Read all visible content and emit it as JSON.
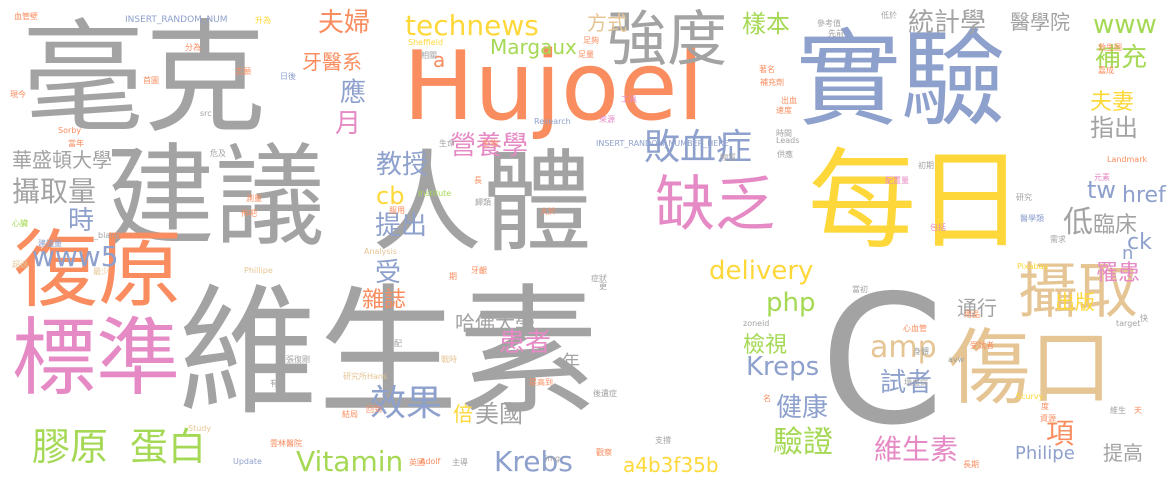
{
  "palette": {
    "gray": "#a3a3a3",
    "orange": "#f98d5f",
    "blue": "#8ea0cc",
    "pink": "#e58ac4",
    "yellow": "#fed83a",
    "green": "#a5d955",
    "tan": "#e6c595"
  },
  "words": [
    {
      "text": "毫克",
      "color": "gray"
    },
    {
      "text": "建議",
      "color": "gray"
    },
    {
      "text": "Hujoel",
      "color": "orange"
    },
    {
      "text": "實驗",
      "color": "blue"
    },
    {
      "text": "人體",
      "color": "gray"
    },
    {
      "text": "每日",
      "color": "yellow"
    },
    {
      "text": "維生素",
      "color": "gray"
    },
    {
      "text": "C",
      "color": "gray"
    },
    {
      "text": "復原",
      "color": "orange"
    },
    {
      "text": "標準",
      "color": "pink"
    },
    {
      "text": "傷口",
      "color": "tan"
    },
    {
      "text": "攝取",
      "color": "tan"
    },
    {
      "text": "強度",
      "color": "gray"
    },
    {
      "text": "缺乏",
      "color": "pink"
    },
    {
      "text": "膠原",
      "color": "green"
    },
    {
      "text": "蛋白",
      "color": "green"
    },
    {
      "text": "technews",
      "color": "yellow"
    },
    {
      "text": "樣本",
      "color": "green"
    },
    {
      "text": "統計學",
      "color": "gray"
    },
    {
      "text": "醫學院",
      "color": "gray"
    },
    {
      "text": "www",
      "color": "green"
    },
    {
      "text": "補充",
      "color": "green"
    },
    {
      "text": "夫婦",
      "color": "orange"
    },
    {
      "text": "牙醫系",
      "color": "orange"
    },
    {
      "text": "Margaux",
      "color": "green"
    },
    {
      "text": "敗血症",
      "color": "blue"
    },
    {
      "text": "營養學",
      "color": "pink"
    },
    {
      "text": "教授",
      "color": "blue"
    },
    {
      "text": "提出",
      "color": "blue"
    },
    {
      "text": "delivery",
      "color": "yellow"
    },
    {
      "text": "php",
      "color": "green"
    },
    {
      "text": "Kreps",
      "color": "blue"
    },
    {
      "text": "amp",
      "color": "tan"
    },
    {
      "text": "試者",
      "color": "blue"
    },
    {
      "text": "效果",
      "color": "blue"
    },
    {
      "text": "美國",
      "color": "gray"
    },
    {
      "text": "Vitamin",
      "color": "green"
    },
    {
      "text": "Krebs",
      "color": "blue"
    },
    {
      "text": "a4b3f35b",
      "color": "yellow"
    },
    {
      "text": "驗證",
      "color": "green"
    },
    {
      "text": "維生素",
      "color": "pink"
    },
    {
      "text": "Philipe",
      "color": "blue"
    },
    {
      "text": "提高",
      "color": "gray"
    },
    {
      "text": "華盛頓大學",
      "color": "gray"
    },
    {
      "text": "攝取量",
      "color": "gray"
    },
    {
      "text": "www5",
      "color": "blue"
    },
    {
      "text": "哈佛大學",
      "color": "gray"
    },
    {
      "text": "患者",
      "color": "pink"
    },
    {
      "text": "檢視",
      "color": "green"
    },
    {
      "text": "健康",
      "color": "blue"
    },
    {
      "text": "出版",
      "color": "yellow"
    },
    {
      "text": "罹患",
      "color": "pink"
    },
    {
      "text": "臨床",
      "color": "gray"
    },
    {
      "text": "指出",
      "color": "gray"
    },
    {
      "text": "夫妻",
      "color": "yellow"
    },
    {
      "text": "href",
      "color": "blue"
    },
    {
      "text": "ck",
      "color": "blue"
    },
    {
      "text": "tw",
      "color": "blue"
    },
    {
      "text": "cb",
      "color": "yellow"
    },
    {
      "text": "雜誌",
      "color": "orange"
    },
    {
      "text": "通行",
      "color": "gray"
    },
    {
      "text": "方式",
      "color": "tan"
    },
    {
      "text": "月",
      "color": "pink"
    },
    {
      "text": "應",
      "color": "blue"
    },
    {
      "text": "低",
      "color": "gray"
    },
    {
      "text": "時",
      "color": "blue"
    },
    {
      "text": "受",
      "color": "blue"
    },
    {
      "text": "倍",
      "color": "yellow"
    },
    {
      "text": "年",
      "color": "gray"
    },
    {
      "text": "項",
      "color": "orange"
    },
    {
      "text": "n",
      "color": "blue"
    },
    {
      "text": "a",
      "color": "orange"
    },
    {
      "text": "INSERT_RANDOM_NUM",
      "color": "blue"
    },
    {
      "text": "INSERT_RANDOM_NUMBER_HERE'",
      "color": "blue"
    },
    {
      "text": "_blank'",
      "color": "gray"
    },
    {
      "text": "Research",
      "color": "blue"
    },
    {
      "text": "Sheffield",
      "color": "yellow"
    },
    {
      "text": "Pixabay",
      "color": "yellow"
    },
    {
      "text": "Landmark",
      "color": "orange"
    },
    {
      "text": "Institute",
      "color": "green"
    },
    {
      "text": "Analysis",
      "color": "tan"
    },
    {
      "text": "Leads",
      "color": "gray"
    },
    {
      "text": "Scurvy",
      "color": "yellow"
    },
    {
      "text": "zoneid",
      "color": "gray"
    },
    {
      "text": "target",
      "color": "gray"
    },
    {
      "text": "Sorby",
      "color": "orange"
    },
    {
      "text": "Adolf",
      "color": "orange"
    },
    {
      "text": "Update",
      "color": "blue"
    },
    {
      "text": "Study",
      "color": "tan"
    },
    {
      "text": "Hans",
      "color": "tan"
    },
    {
      "text": "Phillipe",
      "color": "tan"
    },
    {
      "text": "avw",
      "color": "gray"
    },
    {
      "text": "img",
      "color": "gray"
    },
    {
      "text": "src",
      "color": "gray"
    },
    {
      "text": "血管壁",
      "color": "orange"
    },
    {
      "text": "升為",
      "color": "yellow"
    },
    {
      "text": "分為",
      "color": "orange"
    },
    {
      "text": "志願",
      "color": "orange"
    },
    {
      "text": "首圖",
      "color": "orange"
    },
    {
      "text": "日後",
      "color": "blue"
    },
    {
      "text": "現今",
      "color": "orange"
    },
    {
      "text": "當年",
      "color": "orange"
    },
    {
      "text": "危及",
      "color": "gray"
    },
    {
      "text": "心臟",
      "color": "green"
    },
    {
      "text": "建議量",
      "color": "blue"
    },
    {
      "text": "超過",
      "color": "tan"
    },
    {
      "text": "最少",
      "color": "tan"
    },
    {
      "text": "參考值",
      "color": "gray"
    },
    {
      "text": "先前",
      "color": "gray"
    },
    {
      "text": "低於",
      "color": "gray"
    },
    {
      "text": "救生圈",
      "color": "orange"
    },
    {
      "text": "嘉成",
      "color": "orange"
    },
    {
      "text": "著名",
      "color": "orange"
    },
    {
      "text": "補充劑",
      "color": "orange"
    },
    {
      "text": "工具",
      "color": "pink"
    },
    {
      "text": "物質",
      "color": "gray"
    },
    {
      "text": "生命",
      "color": "gray"
    },
    {
      "text": "來源",
      "color": "pink"
    },
    {
      "text": "出血",
      "color": "orange"
    },
    {
      "text": "速度",
      "color": "orange"
    },
    {
      "text": "時間",
      "color": "gray"
    },
    {
      "text": "供應",
      "color": "gray"
    },
    {
      "text": "初期",
      "color": "gray"
    },
    {
      "text": "元素",
      "color": "pink"
    },
    {
      "text": "配置量",
      "color": "pink"
    },
    {
      "text": "研究",
      "color": "gray"
    },
    {
      "text": "包括",
      "color": "pink"
    },
    {
      "text": "醫學類",
      "color": "blue"
    },
    {
      "text": "需求",
      "color": "gray"
    },
    {
      "text": "牙齦",
      "color": "orange"
    },
    {
      "text": "症狀",
      "color": "gray"
    },
    {
      "text": "當初",
      "color": "gray"
    },
    {
      "text": "用品",
      "color": "orange"
    },
    {
      "text": "心血管",
      "color": "orange"
    },
    {
      "text": "身體",
      "color": "gray"
    },
    {
      "text": "受試者",
      "color": "orange"
    },
    {
      "text": "維生",
      "color": "gray"
    },
    {
      "text": "戰時",
      "color": "tan"
    },
    {
      "text": "研究所",
      "color": "tan"
    },
    {
      "text": "張復剛",
      "color": "gray"
    },
    {
      "text": "回到",
      "color": "orange"
    },
    {
      "text": "結局",
      "color": "orange"
    },
    {
      "text": "雲林醫院",
      "color": "orange"
    },
    {
      "text": "提高到",
      "color": "orange"
    },
    {
      "text": "後遺症",
      "color": "gray"
    },
    {
      "text": "英國",
      "color": "orange"
    },
    {
      "text": "支撐",
      "color": "gray"
    },
    {
      "text": "主導",
      "color": "gray"
    },
    {
      "text": "長期",
      "color": "orange"
    },
    {
      "text": "觀察",
      "color": "orange"
    },
    {
      "text": "資源",
      "color": "orange"
    },
    {
      "text": "壞血病",
      "color": "gray"
    },
    {
      "text": "大於",
      "color": "orange"
    },
    {
      "text": "足夠",
      "color": "orange"
    },
    {
      "text": "足量",
      "color": "orange"
    },
    {
      "text": "相關",
      "color": "gray"
    },
    {
      "text": "生物",
      "color": "orange"
    },
    {
      "text": "服用",
      "color": "orange"
    },
    {
      "text": "測量",
      "color": "orange"
    },
    {
      "text": "佈吧",
      "color": "orange"
    },
    {
      "text": "分配",
      "color": "gray"
    },
    {
      "text": "歸類",
      "color": "gray"
    },
    {
      "text": "期",
      "color": "orange"
    },
    {
      "text": "快",
      "color": "gray"
    },
    {
      "text": "度",
      "color": "orange"
    },
    {
      "text": "更",
      "color": "gray"
    },
    {
      "text": "名",
      "color": "orange"
    },
    {
      "text": "長",
      "color": "orange"
    },
    {
      "text": "有",
      "color": "gray"
    },
    {
      "text": "天",
      "color": "orange"
    }
  ]
}
